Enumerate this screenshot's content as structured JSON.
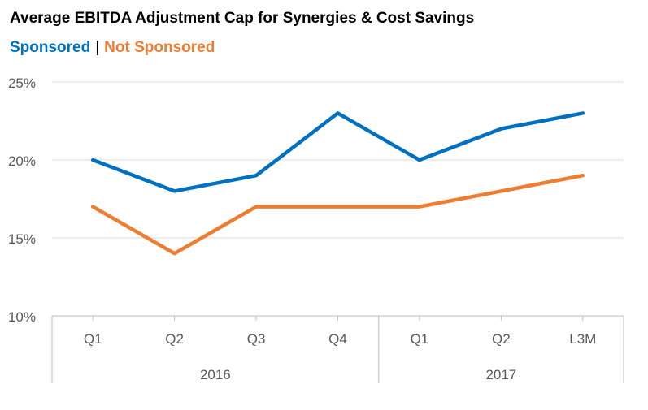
{
  "chart_data": {
    "type": "line",
    "title": "Average EBITDA Adjustment Cap for Synergies & Cost Savings",
    "categories": [
      "Q1",
      "Q2",
      "Q3",
      "Q4",
      "Q1",
      "Q2",
      "L3M"
    ],
    "groups": [
      {
        "label": "2016",
        "count": 4
      },
      {
        "label": "2017",
        "count": 3
      }
    ],
    "series": [
      {
        "name": "Sponsored",
        "color": "#0070C0",
        "values": [
          20,
          18,
          19,
          23,
          20,
          22,
          23
        ]
      },
      {
        "name": "Not Sponsored",
        "color": "#ED7D31",
        "values": [
          17,
          14,
          17,
          17,
          17,
          18,
          19
        ]
      }
    ],
    "y_ticks": [
      "10%",
      "15%",
      "20%",
      "25%"
    ],
    "ylim": [
      10,
      25
    ],
    "grid": true,
    "legend_position": "top-left",
    "legend_separator": "|"
  }
}
